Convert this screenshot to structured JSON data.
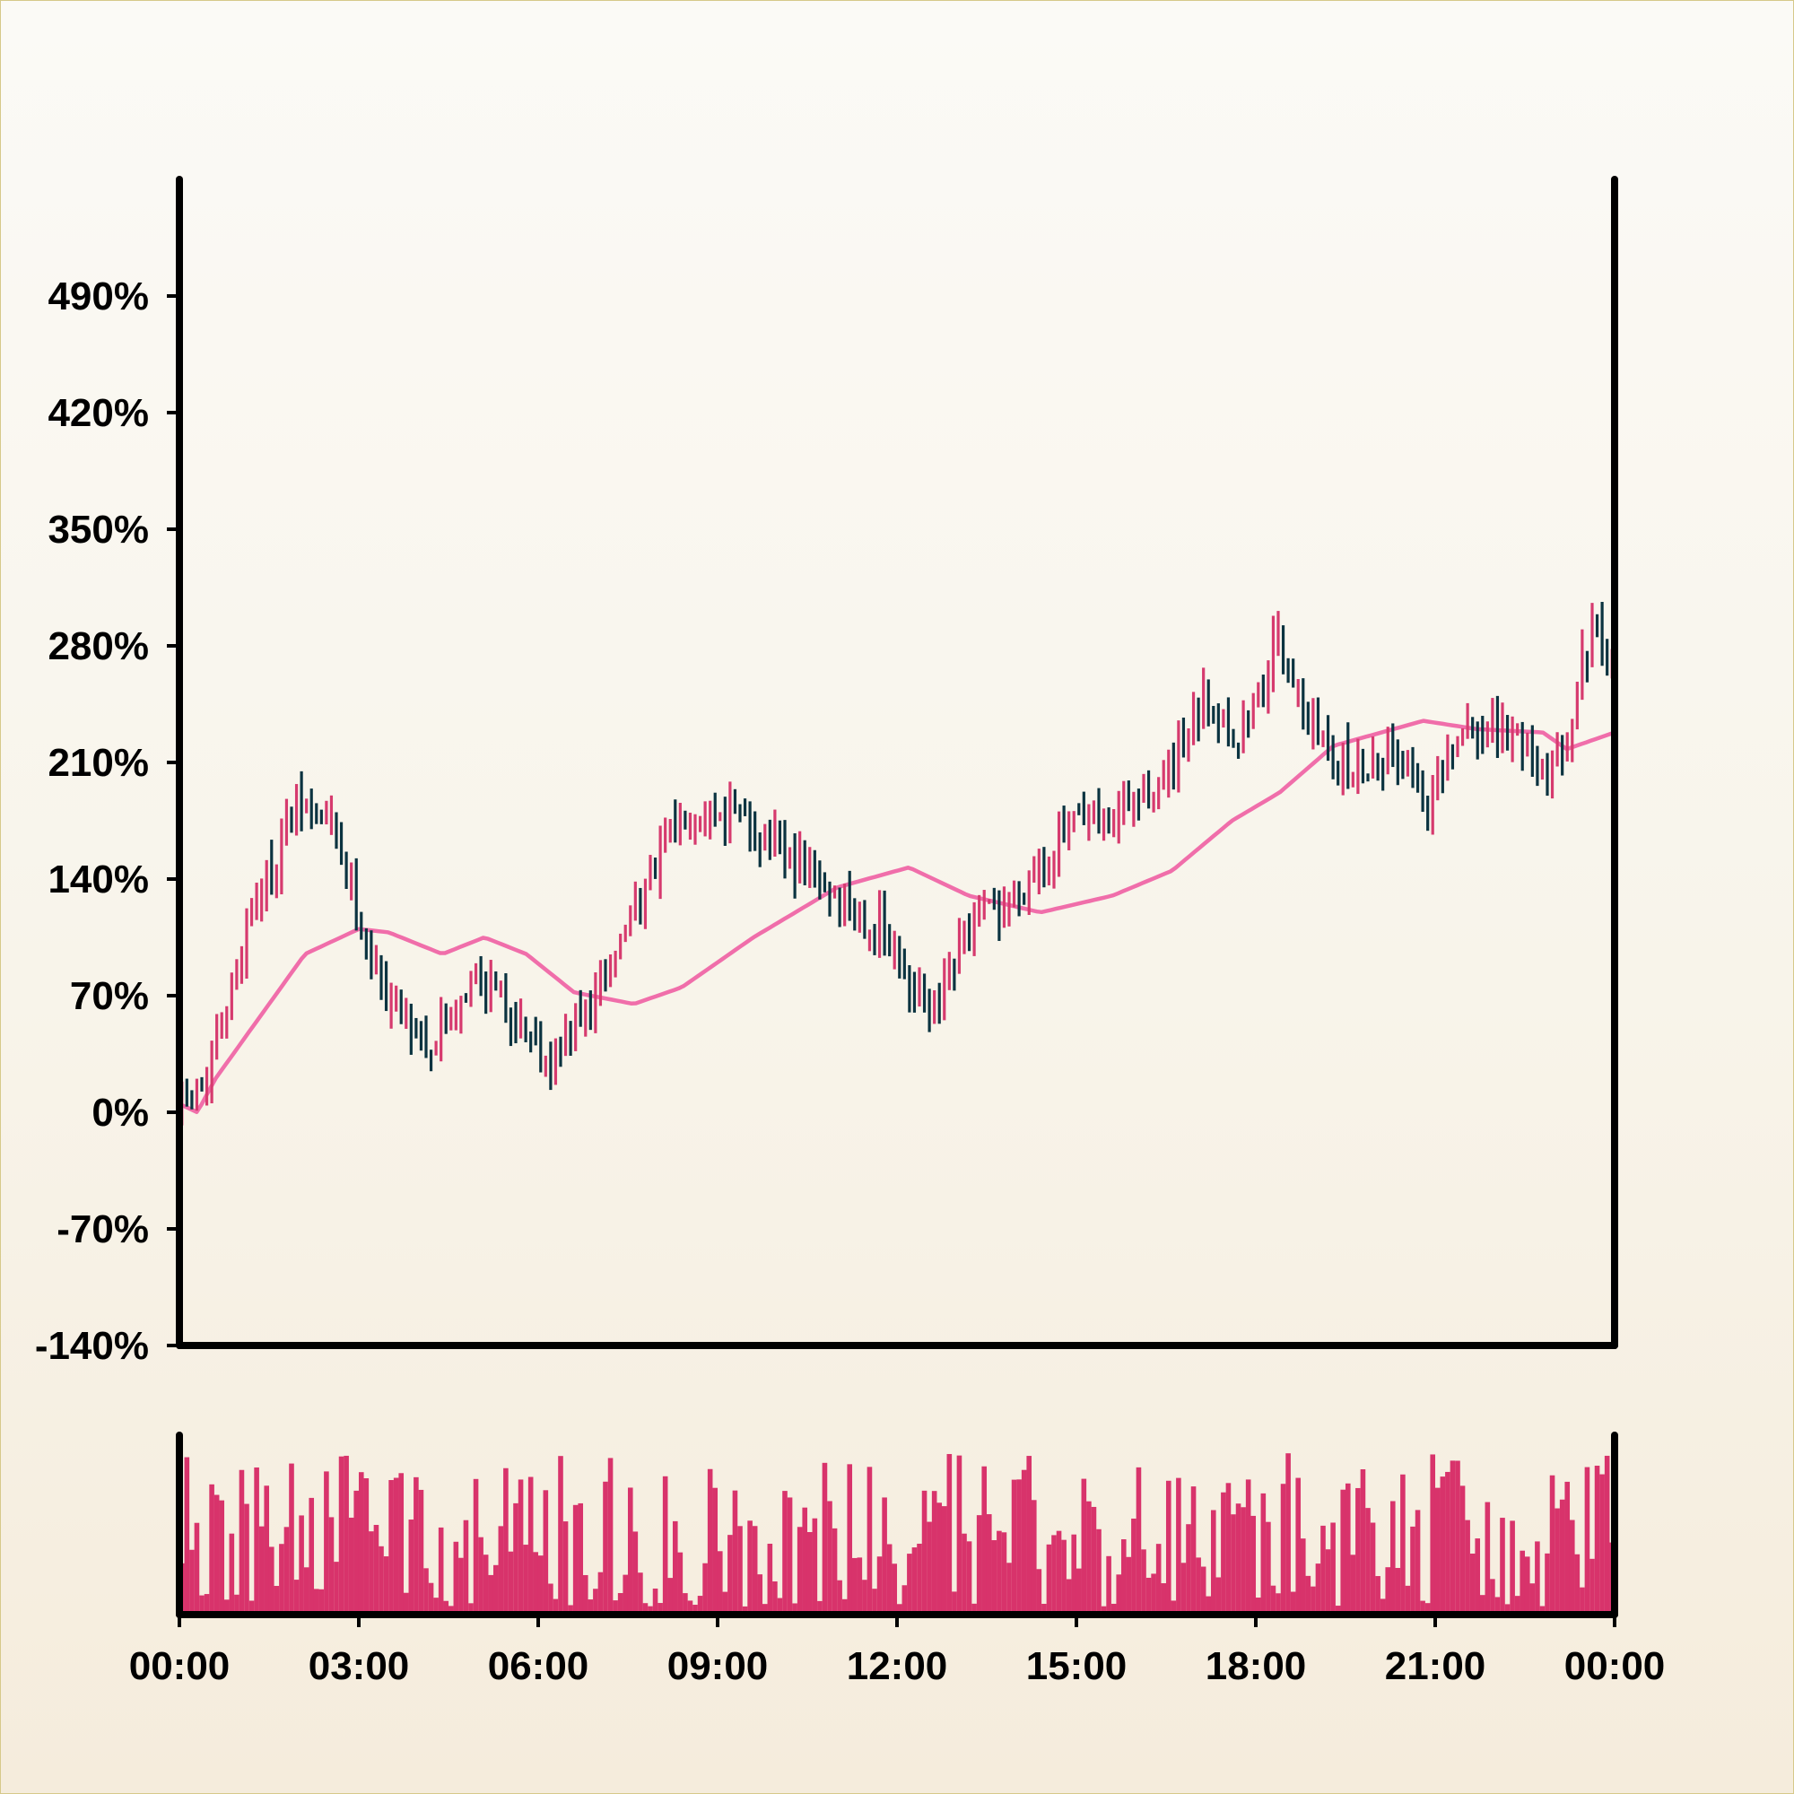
{
  "chart_data": {
    "type": "ohlc",
    "title": "",
    "xlabel": "",
    "ylabel": "",
    "ylim": [
      -140,
      560
    ],
    "x_range": [
      "00:00",
      "24:00"
    ],
    "y_ticks": [
      -140,
      -70,
      0,
      70,
      140,
      210,
      280,
      350,
      420,
      490
    ],
    "y_tick_labels": [
      "-140%",
      "-70%",
      "0%",
      "70%",
      "140%",
      "210%",
      "280%",
      "350%",
      "420%",
      "490%"
    ],
    "x_tick_labels": [
      "00:00",
      "03:00",
      "06:00",
      "09:00",
      "12:00",
      "15:00",
      "18:00",
      "21:00",
      "00:00"
    ],
    "bar_count": 288,
    "bar_interval_minutes": 5,
    "colors": {
      "up": "#d63a6e",
      "down": "#0b3340",
      "moving_average": "#f06eaa",
      "volume": "#d8336b",
      "axis": "#000000"
    },
    "price_series_keypoints": [
      {
        "hour": 0.0,
        "value": 0
      },
      {
        "hour": 0.5,
        "value": 20
      },
      {
        "hour": 1.2,
        "value": 120
      },
      {
        "hour": 2.0,
        "value": 185
      },
      {
        "hour": 2.6,
        "value": 170
      },
      {
        "hour": 3.3,
        "value": 80
      },
      {
        "hour": 4.2,
        "value": 40
      },
      {
        "hour": 5.0,
        "value": 85
      },
      {
        "hour": 6.2,
        "value": 30
      },
      {
        "hour": 7.0,
        "value": 70
      },
      {
        "hour": 7.5,
        "value": 115
      },
      {
        "hour": 8.5,
        "value": 185
      },
      {
        "hour": 9.3,
        "value": 180
      },
      {
        "hour": 10.2,
        "value": 150
      },
      {
        "hour": 11.0,
        "value": 130
      },
      {
        "hour": 11.7,
        "value": 110
      },
      {
        "hour": 12.6,
        "value": 55
      },
      {
        "hour": 13.2,
        "value": 110
      },
      {
        "hour": 14.0,
        "value": 130
      },
      {
        "hour": 14.8,
        "value": 170
      },
      {
        "hour": 15.5,
        "value": 175
      },
      {
        "hour": 16.5,
        "value": 200
      },
      {
        "hour": 17.2,
        "value": 250
      },
      {
        "hour": 17.7,
        "value": 220
      },
      {
        "hour": 18.4,
        "value": 285
      },
      {
        "hour": 19.0,
        "value": 225
      },
      {
        "hour": 19.6,
        "value": 205
      },
      {
        "hour": 20.3,
        "value": 220
      },
      {
        "hour": 20.9,
        "value": 185
      },
      {
        "hour": 21.5,
        "value": 230
      },
      {
        "hour": 22.4,
        "value": 225
      },
      {
        "hour": 23.0,
        "value": 200
      },
      {
        "hour": 23.6,
        "value": 290
      },
      {
        "hour": 24.0,
        "value": 260
      }
    ],
    "moving_average_keypoints": [
      {
        "hour": 0.0,
        "value": 5
      },
      {
        "hour": 0.3,
        "value": 0
      },
      {
        "hour": 0.6,
        "value": 20
      },
      {
        "hour": 1.4,
        "value": 60
      },
      {
        "hour": 2.1,
        "value": 95
      },
      {
        "hour": 3.0,
        "value": 110
      },
      {
        "hour": 3.5,
        "value": 108
      },
      {
        "hour": 4.4,
        "value": 95
      },
      {
        "hour": 5.1,
        "value": 105
      },
      {
        "hour": 5.8,
        "value": 95
      },
      {
        "hour": 6.6,
        "value": 72
      },
      {
        "hour": 7.6,
        "value": 65
      },
      {
        "hour": 8.4,
        "value": 75
      },
      {
        "hour": 9.6,
        "value": 105
      },
      {
        "hour": 11.0,
        "value": 135
      },
      {
        "hour": 12.2,
        "value": 147
      },
      {
        "hour": 13.2,
        "value": 130
      },
      {
        "hour": 14.4,
        "value": 120
      },
      {
        "hour": 15.6,
        "value": 130
      },
      {
        "hour": 16.6,
        "value": 145
      },
      {
        "hour": 17.6,
        "value": 175
      },
      {
        "hour": 18.4,
        "value": 192
      },
      {
        "hour": 19.3,
        "value": 220
      },
      {
        "hour": 20.8,
        "value": 235
      },
      {
        "hour": 21.7,
        "value": 230
      },
      {
        "hour": 22.8,
        "value": 228
      },
      {
        "hour": 23.2,
        "value": 218
      },
      {
        "hour": 24.0,
        "value": 228
      }
    ],
    "volume_relative_range": [
      0.05,
      1.0
    ]
  }
}
